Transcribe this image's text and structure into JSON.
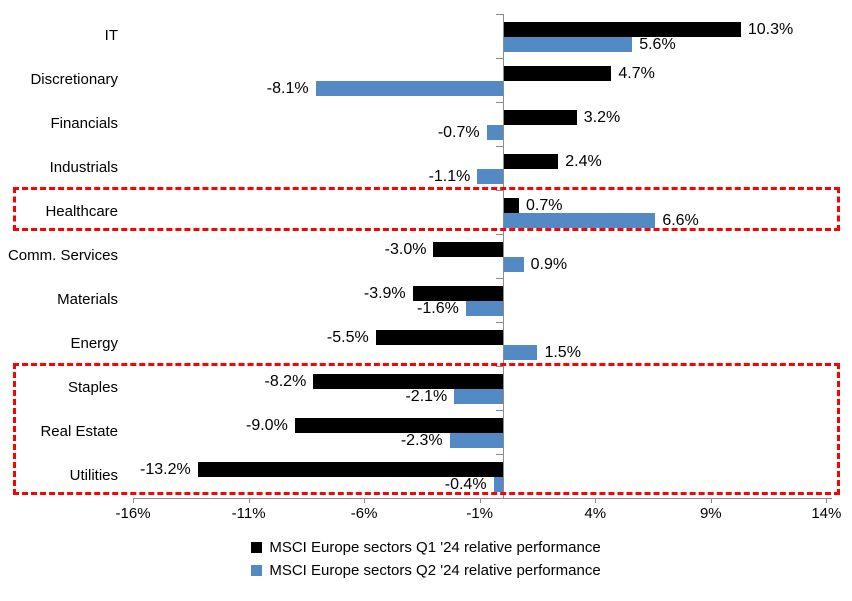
{
  "chart_data": {
    "type": "bar",
    "orientation": "horizontal",
    "title": "",
    "categories": [
      "IT",
      "Discretionary",
      "Financials",
      "Industrials",
      "Healthcare",
      "Comm. Services",
      "Materials",
      "Energy",
      "Staples",
      "Real Estate",
      "Utilities"
    ],
    "series": [
      {
        "name": "MSCI Europe sectors Q1 '24 relative performance",
        "color": "#000000",
        "values": [
          10.3,
          4.7,
          3.2,
          2.4,
          0.7,
          -3.0,
          -3.9,
          -5.5,
          -8.2,
          -9.0,
          -13.2
        ],
        "labels": [
          "10.3%",
          "4.7%",
          "3.2%",
          "2.4%",
          "0.7%",
          "-3.0%",
          "-3.9%",
          "-5.5%",
          "-8.2%",
          "-9.0%",
          "-13.2%"
        ]
      },
      {
        "name": "MSCI Europe sectors Q2 '24 relative performance",
        "color": "#548AC4",
        "values": [
          5.6,
          -8.1,
          -0.7,
          -1.1,
          6.6,
          0.9,
          -1.6,
          1.5,
          -2.1,
          -2.3,
          -0.4
        ],
        "labels": [
          "5.6%",
          "-8.1%",
          "-0.7%",
          "-1.1%",
          "6.6%",
          "0.9%",
          "-1.6%",
          "1.5%",
          "-2.1%",
          "-2.3%",
          "-0.4%"
        ]
      }
    ],
    "x_axis": {
      "min": -16,
      "max": 14,
      "tick_step": 5,
      "tick_values": [
        -16,
        -11,
        -6,
        -1,
        4,
        9,
        14
      ],
      "tick_labels": [
        "-16%",
        "-11%",
        "-6%",
        "-1%",
        "4%",
        "9%",
        "14%"
      ]
    },
    "grid": false,
    "legend_position": "bottom",
    "annotations": {
      "highlight_color": "#FF0000",
      "highlights": [
        {
          "sectors": [
            "Healthcare"
          ],
          "start_index": 4,
          "end_index": 4
        },
        {
          "sectors": [
            "Staples",
            "Real Estate",
            "Utilities"
          ],
          "start_index": 8,
          "end_index": 10
        }
      ]
    }
  },
  "legend": {
    "q1": "MSCI Europe sectors Q1 '24 relative performance",
    "q2": "MSCI Europe sectors Q2 '24 relative performance"
  }
}
